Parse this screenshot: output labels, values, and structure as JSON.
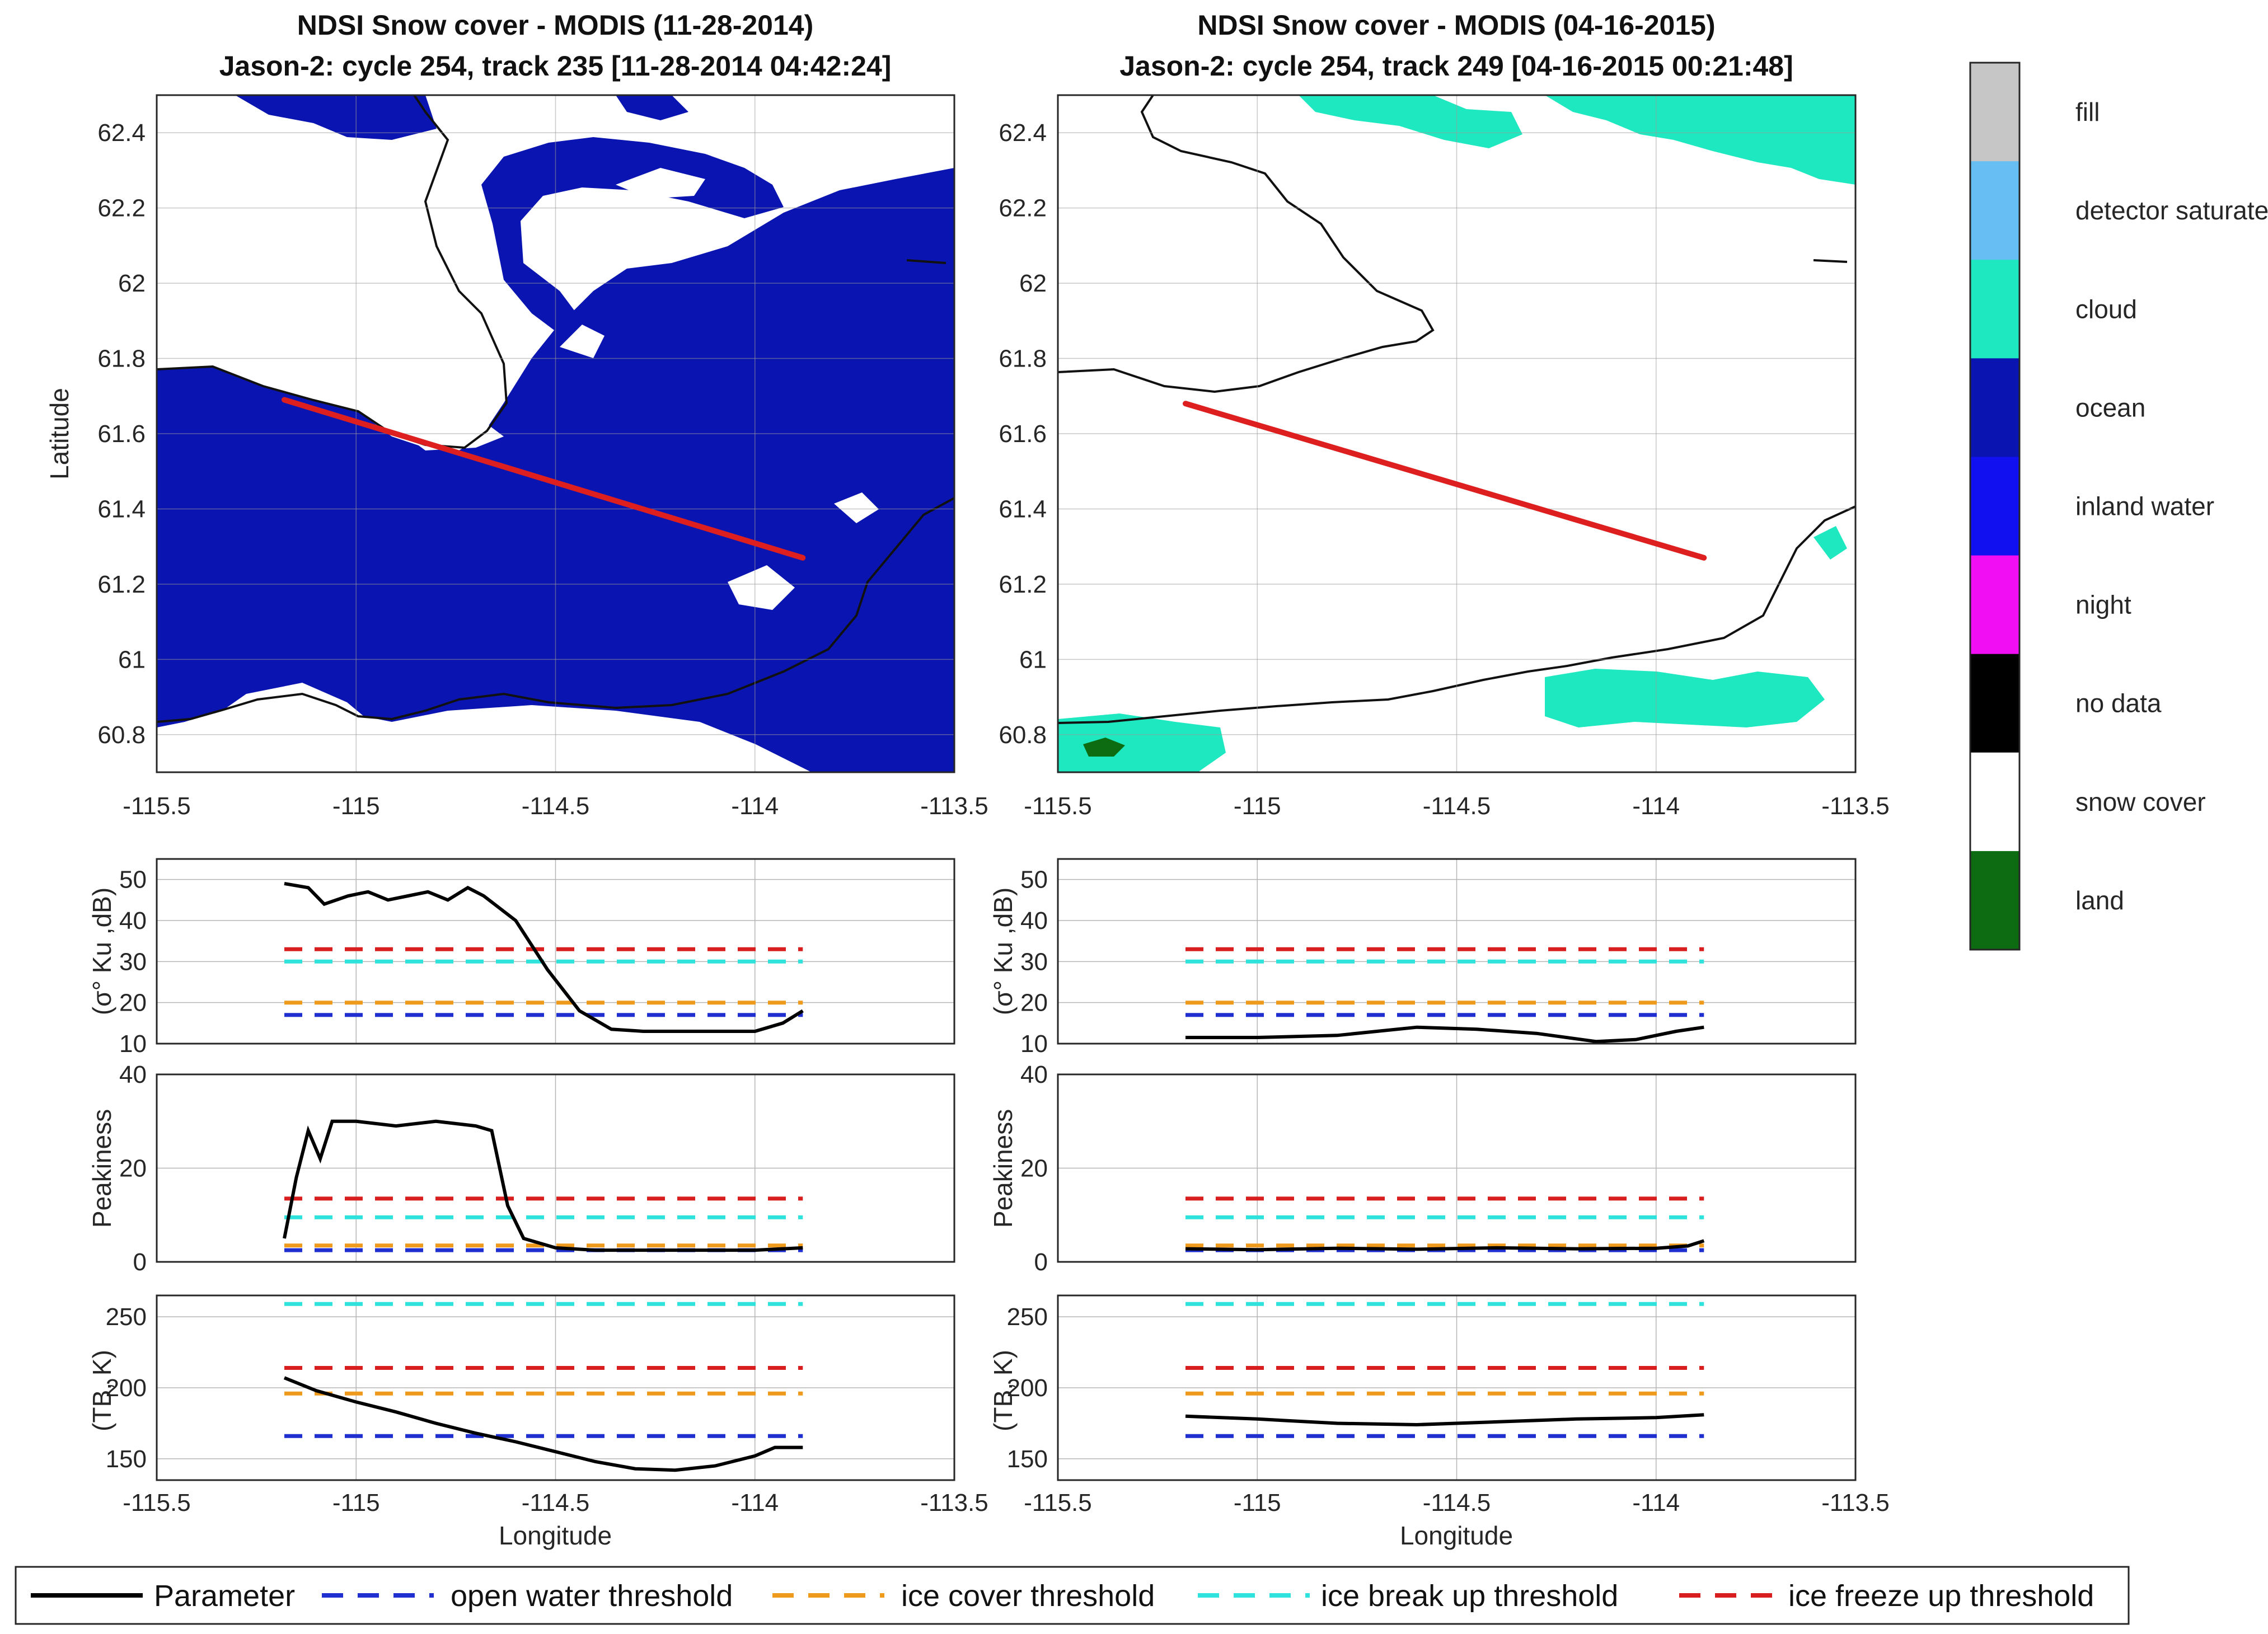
{
  "chart_data": [
    {
      "type": "map",
      "title_line1": "NDSI Snow cover - MODIS (11-28-2014)",
      "title_line2": "Jason-2: cycle 254, track 235 [11-28-2014 04:42:24]",
      "xlabel": "",
      "ylabel": "Latitude",
      "xlim": [
        -115.5,
        -113.5
      ],
      "ylim": [
        60.7,
        62.5
      ],
      "xticks": [
        -115.5,
        -115,
        -114.5,
        -114,
        -113.5
      ],
      "xtick_labels": [
        "-115.5",
        "-115",
        "-114.5",
        "-114",
        "-113.5"
      ],
      "yticks": [
        60.8,
        61,
        61.2,
        61.4,
        61.6,
        61.8,
        62,
        62.2,
        62.4
      ],
      "ytick_labels": [
        "60.8",
        "61",
        "61.2",
        "61.4",
        "61.6",
        "61.8",
        "62",
        "62.2",
        "62.4"
      ],
      "dominant_class": "ocean",
      "track": {
        "color": "#dd1f1f",
        "x": [
          -115.18,
          -113.88
        ],
        "y": [
          61.69,
          61.27
        ]
      }
    },
    {
      "type": "map",
      "title_line1": "NDSI Snow cover - MODIS (04-16-2015)",
      "title_line2": "Jason-2: cycle 254, track 249 [04-16-2015 00:21:48]",
      "xlabel": "",
      "ylabel": "",
      "xlim": [
        -115.5,
        -113.5
      ],
      "ylim": [
        60.7,
        62.5
      ],
      "xticks": [
        -115.5,
        -115,
        -114.5,
        -114,
        -113.5
      ],
      "xtick_labels": [
        "-115.5",
        "-115",
        "-114.5",
        "-114",
        "-113.5"
      ],
      "yticks": [
        60.8,
        61,
        61.2,
        61.4,
        61.6,
        61.8,
        62,
        62.2,
        62.4
      ],
      "ytick_labels": [
        "60.8",
        "61",
        "61.2",
        "61.4",
        "61.6",
        "61.8",
        "62",
        "62.2",
        "62.4"
      ],
      "dominant_class": "snow cover",
      "track": {
        "color": "#dd1f1f",
        "x": [
          -115.18,
          -113.88
        ],
        "y": [
          61.68,
          61.27
        ]
      }
    },
    {
      "type": "line",
      "ylabel": "(σ° Ku ,dB)",
      "xlabel": "",
      "xlim": [
        -115.5,
        -113.5
      ],
      "ylim": [
        10,
        55
      ],
      "xticks": [
        -115.5,
        -115,
        -114.5,
        -114,
        -113.5
      ],
      "yticks": [
        10,
        20,
        30,
        40,
        50
      ],
      "ytick_labels": [
        "10",
        "20",
        "30",
        "40",
        "50"
      ],
      "xtick_labels": [],
      "series": [
        {
          "name": "Parameter",
          "x": [
            -115.18,
            -115.12,
            -115.08,
            -115.02,
            -114.97,
            -114.92,
            -114.87,
            -114.82,
            -114.77,
            -114.72,
            -114.68,
            -114.6,
            -114.52,
            -114.44,
            -114.36,
            -114.28,
            -114.2,
            -114.1,
            -114.0,
            -113.93,
            -113.88
          ],
          "values": [
            49,
            48,
            44,
            46,
            47,
            45,
            46,
            47,
            45,
            48,
            46,
            40,
            28,
            18,
            13.5,
            13,
            13,
            13,
            13,
            15,
            18
          ]
        },
        {
          "name": "open water threshold",
          "x": [
            -115.18,
            -113.88
          ],
          "values": [
            17,
            17
          ]
        },
        {
          "name": "ice cover threshold",
          "x": [
            -115.18,
            -113.88
          ],
          "values": [
            20,
            20
          ]
        },
        {
          "name": "ice break up threshold",
          "x": [
            -115.18,
            -113.88
          ],
          "values": [
            30,
            30
          ]
        },
        {
          "name": "ice freeze up threshold",
          "x": [
            -115.18,
            -113.88
          ],
          "values": [
            33,
            33
          ]
        }
      ]
    },
    {
      "type": "line",
      "ylabel": "(σ° Ku ,dB)",
      "xlabel": "",
      "xlim": [
        -115.5,
        -113.5
      ],
      "ylim": [
        10,
        55
      ],
      "xticks": [
        -115.5,
        -115,
        -114.5,
        -114,
        -113.5
      ],
      "yticks": [
        10,
        20,
        30,
        40,
        50
      ],
      "ytick_labels": [
        "10",
        "20",
        "30",
        "40",
        "50"
      ],
      "xtick_labels": [],
      "series": [
        {
          "name": "Parameter",
          "x": [
            -115.18,
            -115.0,
            -114.8,
            -114.6,
            -114.45,
            -114.3,
            -114.15,
            -114.05,
            -113.95,
            -113.88
          ],
          "values": [
            11.5,
            11.5,
            12,
            14,
            13.5,
            12.5,
            10.5,
            11,
            13,
            14
          ]
        },
        {
          "name": "open water threshold",
          "x": [
            -115.18,
            -113.88
          ],
          "values": [
            17,
            17
          ]
        },
        {
          "name": "ice cover threshold",
          "x": [
            -115.18,
            -113.88
          ],
          "values": [
            20,
            20
          ]
        },
        {
          "name": "ice break up threshold",
          "x": [
            -115.18,
            -113.88
          ],
          "values": [
            30,
            30
          ]
        },
        {
          "name": "ice freeze up threshold",
          "x": [
            -115.18,
            -113.88
          ],
          "values": [
            33,
            33
          ]
        }
      ]
    },
    {
      "type": "line",
      "ylabel": "Peakiness",
      "xlabel": "",
      "xlim": [
        -115.5,
        -113.5
      ],
      "ylim": [
        0,
        40
      ],
      "xticks": [
        -115.5,
        -115,
        -114.5,
        -114,
        -113.5
      ],
      "yticks": [
        0,
        20,
        40
      ],
      "ytick_labels": [
        "0",
        "20",
        "40"
      ],
      "xtick_labels": [],
      "series": [
        {
          "name": "Parameter",
          "x": [
            -115.18,
            -115.15,
            -115.12,
            -115.09,
            -115.06,
            -115.0,
            -114.9,
            -114.8,
            -114.7,
            -114.66,
            -114.62,
            -114.58,
            -114.5,
            -114.4,
            -114.2,
            -114.0,
            -113.88
          ],
          "values": [
            5,
            18,
            28,
            22,
            30,
            30,
            29,
            30,
            29,
            28,
            12,
            5,
            3,
            2.5,
            2.5,
            2.5,
            3
          ]
        },
        {
          "name": "open water threshold",
          "x": [
            -115.18,
            -113.88
          ],
          "values": [
            2.5,
            2.5
          ]
        },
        {
          "name": "ice cover threshold",
          "x": [
            -115.18,
            -113.88
          ],
          "values": [
            3.5,
            3.5
          ]
        },
        {
          "name": "ice break up threshold",
          "x": [
            -115.18,
            -113.88
          ],
          "values": [
            9.5,
            9.5
          ]
        },
        {
          "name": "ice freeze up threshold",
          "x": [
            -115.18,
            -113.88
          ],
          "values": [
            13.5,
            13.5
          ]
        }
      ]
    },
    {
      "type": "line",
      "ylabel": "Peakiness",
      "xlabel": "",
      "xlim": [
        -115.5,
        -113.5
      ],
      "ylim": [
        0,
        40
      ],
      "xticks": [
        -115.5,
        -115,
        -114.5,
        -114,
        -113.5
      ],
      "yticks": [
        0,
        20,
        40
      ],
      "ytick_labels": [
        "0",
        "20",
        "40"
      ],
      "xtick_labels": [],
      "series": [
        {
          "name": "Parameter",
          "x": [
            -115.18,
            -115.0,
            -114.8,
            -114.6,
            -114.4,
            -114.2,
            -114.0,
            -113.92,
            -113.88
          ],
          "values": [
            2.8,
            2.6,
            2.9,
            2.7,
            3.0,
            2.8,
            2.9,
            3.4,
            4.5
          ]
        },
        {
          "name": "open water threshold",
          "x": [
            -115.18,
            -113.88
          ],
          "values": [
            2.5,
            2.5
          ]
        },
        {
          "name": "ice cover threshold",
          "x": [
            -115.18,
            -113.88
          ],
          "values": [
            3.5,
            3.5
          ]
        },
        {
          "name": "ice break up threshold",
          "x": [
            -115.18,
            -113.88
          ],
          "values": [
            9.5,
            9.5
          ]
        },
        {
          "name": "ice freeze up threshold",
          "x": [
            -115.18,
            -113.88
          ],
          "values": [
            13.5,
            13.5
          ]
        }
      ]
    },
    {
      "type": "line",
      "ylabel": "(TB, K)",
      "xlabel": "Longitude",
      "xlim": [
        -115.5,
        -113.5
      ],
      "ylim": [
        135,
        265
      ],
      "xticks": [
        -115.5,
        -115,
        -114.5,
        -114,
        -113.5
      ],
      "yticks": [
        150,
        200,
        250
      ],
      "ytick_labels": [
        "150",
        "200",
        "250"
      ],
      "xtick_labels": [
        "-115.5",
        "-115",
        "-114.5",
        "-114",
        "-113.5"
      ],
      "series": [
        {
          "name": "Parameter",
          "x": [
            -115.18,
            -115.1,
            -115.0,
            -114.9,
            -114.8,
            -114.7,
            -114.6,
            -114.5,
            -114.4,
            -114.3,
            -114.2,
            -114.1,
            -114.0,
            -113.95,
            -113.88
          ],
          "values": [
            207,
            198,
            190,
            183,
            175,
            168,
            162,
            155,
            148,
            143,
            142,
            145,
            152,
            158,
            158
          ]
        },
        {
          "name": "open water threshold",
          "x": [
            -115.18,
            -113.88
          ],
          "values": [
            166,
            166
          ]
        },
        {
          "name": "ice cover threshold",
          "x": [
            -115.18,
            -113.88
          ],
          "values": [
            196,
            196
          ]
        },
        {
          "name": "ice break up threshold",
          "x": [
            -115.18,
            -113.88
          ],
          "values": [
            259,
            259
          ]
        },
        {
          "name": "ice freeze up threshold",
          "x": [
            -115.18,
            -113.88
          ],
          "values": [
            214,
            214
          ]
        }
      ]
    },
    {
      "type": "line",
      "ylabel": "(TB, K)",
      "xlabel": "Longitude",
      "xlim": [
        -115.5,
        -113.5
      ],
      "ylim": [
        135,
        265
      ],
      "xticks": [
        -115.5,
        -115,
        -114.5,
        -114,
        -113.5
      ],
      "yticks": [
        150,
        200,
        250
      ],
      "ytick_labels": [
        "150",
        "200",
        "250"
      ],
      "xtick_labels": [
        "-115.5",
        "-115",
        "-114.5",
        "-114",
        "-113.5"
      ],
      "series": [
        {
          "name": "Parameter",
          "x": [
            -115.18,
            -115.0,
            -114.8,
            -114.6,
            -114.4,
            -114.2,
            -114.0,
            -113.88
          ],
          "values": [
            180,
            178,
            175,
            174,
            176,
            178,
            179,
            181
          ]
        },
        {
          "name": "open water threshold",
          "x": [
            -115.18,
            -113.88
          ],
          "values": [
            166,
            166
          ]
        },
        {
          "name": "ice cover threshold",
          "x": [
            -115.18,
            -113.88
          ],
          "values": [
            196,
            196
          ]
        },
        {
          "name": "ice break up threshold",
          "x": [
            -115.18,
            -113.88
          ],
          "values": [
            259,
            259
          ]
        },
        {
          "name": "ice freeze up threshold",
          "x": [
            -115.18,
            -113.88
          ],
          "values": [
            214,
            214
          ]
        }
      ]
    }
  ],
  "colorbar": {
    "classes": [
      {
        "label": "fill",
        "color": "#c6c6c6"
      },
      {
        "label": "detector saturated",
        "color": "#67bef3"
      },
      {
        "label": "cloud",
        "color": "#1de8c0"
      },
      {
        "label": "ocean",
        "color": "#0a14b0"
      },
      {
        "label": "inland water",
        "color": "#1010f0"
      },
      {
        "label": "night",
        "color": "#f20ef2"
      },
      {
        "label": "no data",
        "color": "#000000"
      },
      {
        "label": "snow cover",
        "color": "#ffffff"
      },
      {
        "label": "land",
        "color": "#0d6b12"
      }
    ]
  },
  "legend": {
    "items": [
      {
        "label": "Parameter",
        "color": "#000000",
        "dashed": false
      },
      {
        "label": "open water threshold",
        "color": "#1f2fd0",
        "dashed": true
      },
      {
        "label": "ice cover threshold",
        "color": "#ee9a1c",
        "dashed": true
      },
      {
        "label": "ice break up threshold",
        "color": "#2fe2dc",
        "dashed": true
      },
      {
        "label": "ice freeze up threshold",
        "color": "#d81e1e",
        "dashed": true
      }
    ]
  },
  "colors": {
    "ocean": "#0a14b0",
    "cloud": "#1de8c0",
    "land": "#0d6b12",
    "track": "#dd1f1f"
  }
}
